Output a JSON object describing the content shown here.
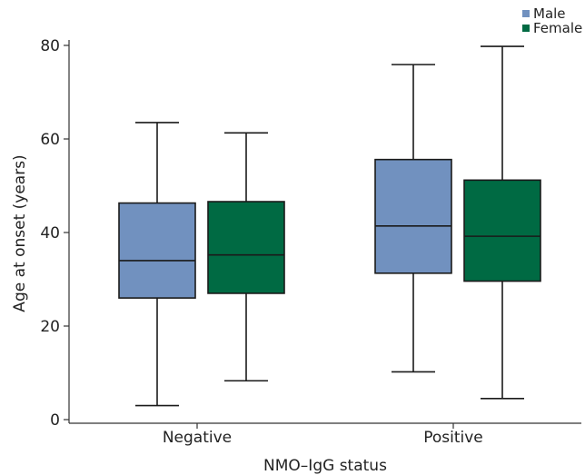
{
  "chart_data": {
    "type": "boxplot",
    "xlabel": "NMO–IgG status",
    "ylabel": "Age at onset (years)",
    "ylim": [
      0,
      80
    ],
    "yticks": [
      0,
      20,
      40,
      60,
      80
    ],
    "categories": [
      "Negative",
      "Positive"
    ],
    "legend_position": "top-right",
    "grid": false,
    "series": [
      {
        "name": "Male",
        "color": "#7191bf",
        "boxes": [
          {
            "min": 3,
            "q1": 26,
            "median": 34,
            "q3": 46.3,
            "max": 63.5
          },
          {
            "min": 10.2,
            "q1": 31.3,
            "median": 41.4,
            "q3": 55.6,
            "max": 75.9
          }
        ]
      },
      {
        "name": "Female",
        "color": "#006a43",
        "boxes": [
          {
            "min": 8.3,
            "q1": 27,
            "median": 35.2,
            "q3": 46.6,
            "max": 61.3
          },
          {
            "min": 4.5,
            "q1": 29.6,
            "median": 39.2,
            "q3": 51.2,
            "max": 79.8
          }
        ]
      }
    ]
  }
}
